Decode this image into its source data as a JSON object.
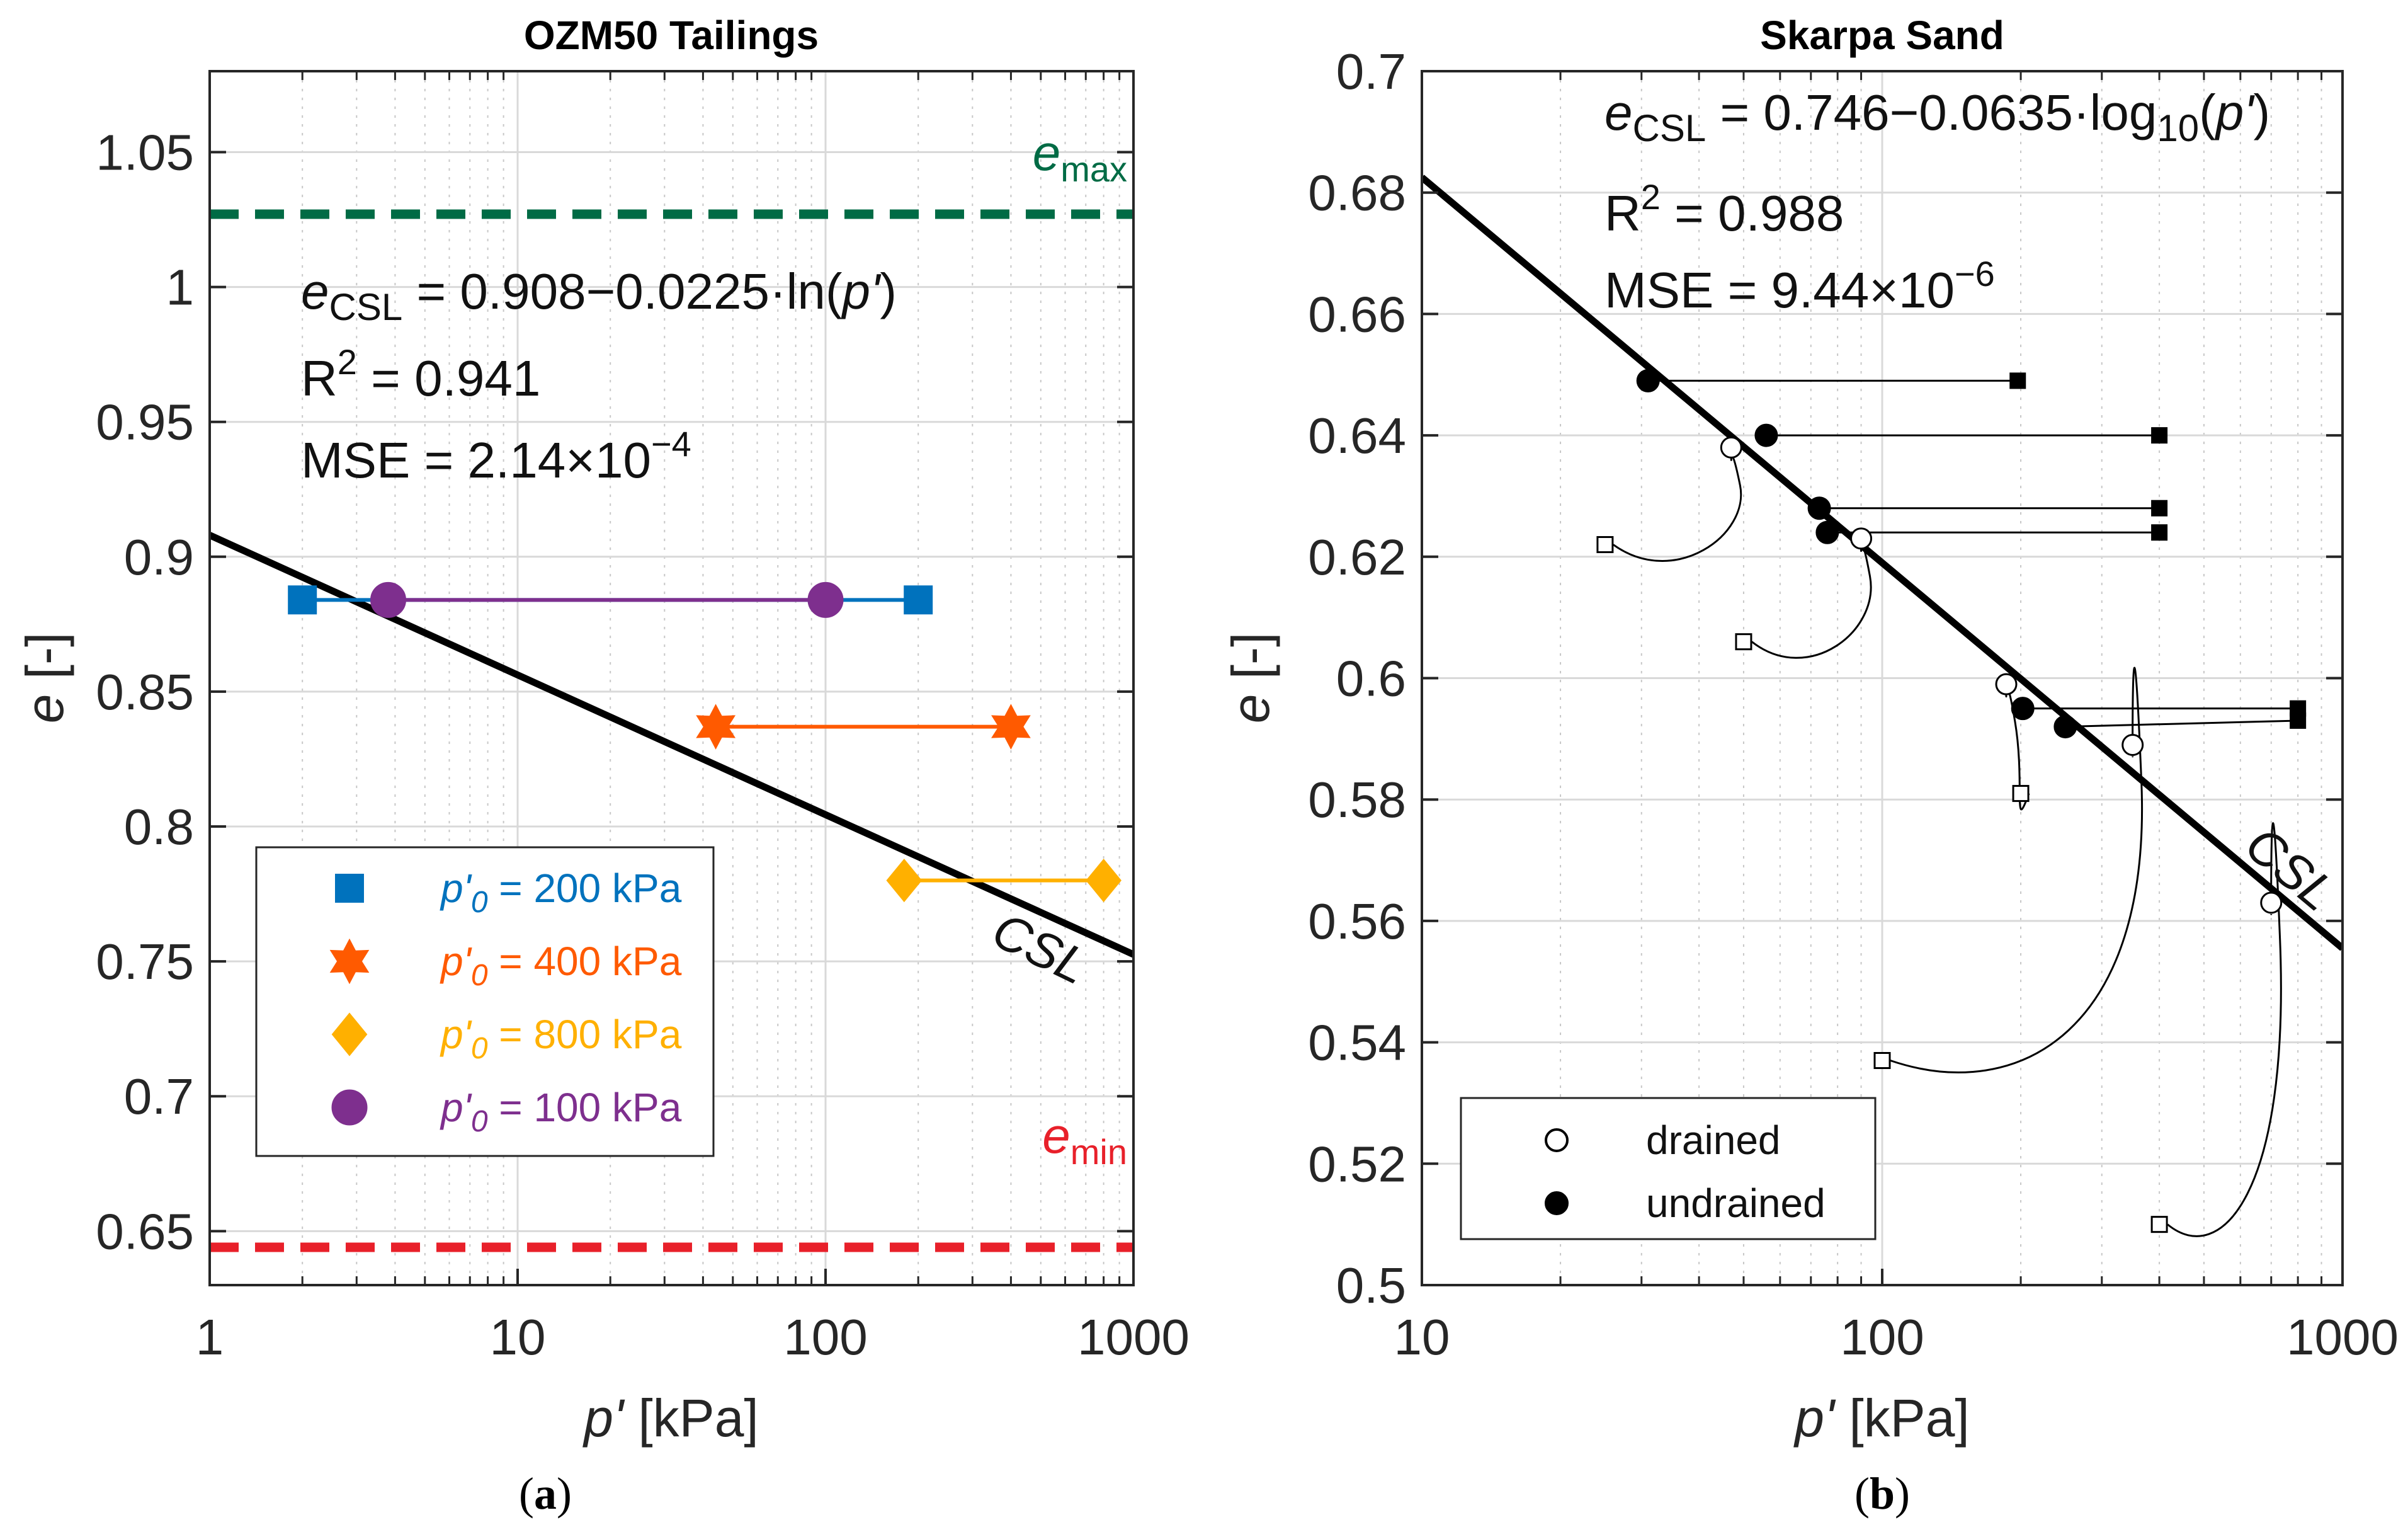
{
  "colors": {
    "blue": "#0072BD",
    "orange": "#FF5A00",
    "yellow": "#FFB000",
    "purple": "#7E2F8E",
    "green": "#006B45",
    "red": "#E8202A",
    "black": "#000000"
  },
  "chart_data": [
    {
      "type": "line",
      "title": "OZM50 Tailings",
      "xscale": "log",
      "xlim": [
        1,
        1000
      ],
      "ylim": [
        0.63,
        1.08
      ],
      "xticks": [
        1,
        10,
        100,
        1000
      ],
      "xtick_labels": [
        "1",
        "10",
        "100",
        "1000"
      ],
      "yticks": [
        0.65,
        0.7,
        0.75,
        0.8,
        0.85,
        0.9,
        0.95,
        1.0,
        1.05
      ],
      "ytick_labels": [
        "0.65",
        "0.7",
        "0.75",
        "0.8",
        "0.85",
        "0.9",
        "0.95",
        "1",
        "1.05"
      ],
      "xlabel_italic": "p'",
      "xlabel_rest": " [kPa]",
      "ylabel_italic": "e",
      "ylabel_rest": " [-]",
      "grid": true,
      "csl": {
        "intercept": 0.908,
        "slope": -0.0225,
        "log": "ln",
        "label": "CSL"
      },
      "reference_lines": [
        {
          "name": "emax",
          "y": 1.027,
          "label_main": "e",
          "label_sub": "max",
          "color": "#006B45"
        },
        {
          "name": "emin",
          "y": 0.644,
          "label_main": "e",
          "label_sub": "min",
          "color": "#E8202A"
        }
      ],
      "equation": {
        "lhs_main": "e",
        "lhs_sub": "CSL",
        "rhs_start": " = 0.908−0.0225·ln(",
        "rhs_var": "p'",
        "rhs_end": ")",
        "r2_label": "R",
        "r2_sup": "2",
        "r2_value": " = 0.941",
        "mse_label": "MSE = 2.14×10",
        "mse_exp": "−4"
      },
      "series": [
        {
          "name": "p'0 = 200 kPa",
          "color": "#0072BD",
          "marker": "square",
          "start": [
            2,
            0.884
          ],
          "end": [
            200,
            0.884
          ]
        },
        {
          "name": "p'0 = 400 kPa",
          "color": "#FF5A00",
          "marker": "hexagram",
          "start": [
            44,
            0.837
          ],
          "end": [
            400,
            0.837
          ]
        },
        {
          "name": "p'0 = 800 kPa",
          "color": "#FFB000",
          "marker": "diamond",
          "start": [
            180,
            0.78
          ],
          "end": [
            800,
            0.78
          ]
        },
        {
          "name": "p'0 = 100 kPa",
          "color": "#7E2F8E",
          "marker": "circle",
          "start": [
            3.8,
            0.884
          ],
          "end": [
            100,
            0.884
          ]
        }
      ],
      "legend": {
        "location": "lower-left",
        "entries": [
          {
            "var": "p'",
            "sub": "0",
            "rest": " = 200 kPa"
          },
          {
            "var": "p'",
            "sub": "0",
            "rest": " = 400 kPa"
          },
          {
            "var": "p'",
            "sub": "0",
            "rest": " = 800 kPa"
          },
          {
            "var": "p'",
            "sub": "0",
            "rest": " = 100 kPa"
          }
        ]
      },
      "caption": "(a)"
    },
    {
      "type": "line",
      "title": "Skarpa Sand",
      "xscale": "log",
      "xlim": [
        10,
        1000
      ],
      "ylim": [
        0.5,
        0.7
      ],
      "xticks": [
        10,
        100,
        1000
      ],
      "xtick_labels": [
        "10",
        "100",
        "1000"
      ],
      "yticks": [
        0.5,
        0.52,
        0.54,
        0.56,
        0.58,
        0.6,
        0.62,
        0.64,
        0.66,
        0.68,
        0.7
      ],
      "ytick_labels": [
        "0.5",
        "0.52",
        "0.54",
        "0.56",
        "0.58",
        "0.6",
        "0.62",
        "0.64",
        "0.66",
        "0.68",
        "0.7"
      ],
      "xlabel_italic": "p'",
      "xlabel_rest": " [kPa]",
      "ylabel_italic": "e",
      "ylabel_rest": " [-]",
      "grid": true,
      "csl": {
        "intercept": 0.746,
        "slope": -0.0635,
        "log": "log10",
        "label": "CSL"
      },
      "equation": {
        "lhs_main": "e",
        "lhs_sub": "CSL",
        "rhs_start": " = 0.746−0.0635·log",
        "rhs_sub": "10",
        "rhs_mid": "(",
        "rhs_var": "p'",
        "rhs_end": ")",
        "r2_label": "R",
        "r2_sup": "2",
        "r2_value": " = 0.988",
        "mse_label": "MSE = 9.44×10",
        "mse_exp": "−6"
      },
      "undrained_paths": [
        {
          "start": [
            197,
            0.649
          ],
          "end": [
            31,
            0.649
          ]
        },
        {
          "start": [
            400,
            0.64
          ],
          "end": [
            56,
            0.64
          ]
        },
        {
          "start": [
            400,
            0.628
          ],
          "end": [
            73,
            0.628
          ]
        },
        {
          "start": [
            400,
            0.624
          ],
          "end": [
            76,
            0.624
          ]
        },
        {
          "start": [
            800,
            0.595
          ],
          "end": [
            202,
            0.595
          ]
        },
        {
          "start": [
            800,
            0.593
          ],
          "end": [
            250,
            0.592
          ]
        }
      ],
      "drained_paths": [
        {
          "start": [
            25,
            0.622
          ],
          "end": [
            47,
            0.638
          ]
        },
        {
          "start": [
            50,
            0.606
          ],
          "end": [
            90,
            0.623
          ]
        },
        {
          "start": [
            200,
            0.581
          ],
          "end": [
            186,
            0.599
          ]
        },
        {
          "start": [
            100,
            0.537
          ],
          "end": [
            350,
            0.589
          ]
        },
        {
          "start": [
            400,
            0.51
          ],
          "end": [
            700,
            0.563
          ]
        }
      ],
      "legend": {
        "location": "lower-left",
        "entries": [
          {
            "label": "drained",
            "marker": "open-circle"
          },
          {
            "label": "undrained",
            "marker": "filled-circle"
          }
        ]
      },
      "caption": "(b)"
    }
  ]
}
